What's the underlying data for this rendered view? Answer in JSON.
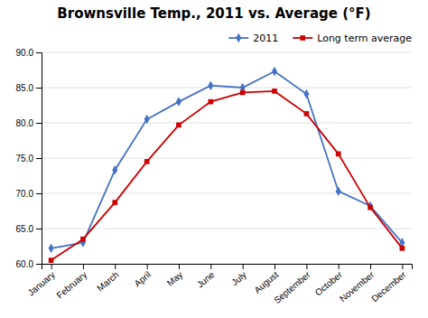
{
  "chart_data": {
    "type": "line",
    "title": "Brownsville Temp., 2011 vs. Average (°F)",
    "categories": [
      "January",
      "February",
      "March",
      "April",
      "May",
      "June",
      "July",
      "August",
      "September",
      "October",
      "November",
      "December"
    ],
    "series": [
      {
        "name": "2011",
        "color": "#4472C4",
        "marker": "diamond",
        "values": [
          62.2,
          63.0,
          73.3,
          80.5,
          83.0,
          85.3,
          85.0,
          87.3,
          84.1,
          70.3,
          68.2,
          63.0
        ]
      },
      {
        "name": "Long term average",
        "color": "#CC0000",
        "marker": "square",
        "values": [
          60.5,
          63.5,
          68.7,
          74.5,
          79.7,
          83.0,
          84.3,
          84.5,
          81.3,
          75.6,
          68.0,
          62.2
        ]
      }
    ],
    "ylim": [
      60.0,
      90.0
    ],
    "yticks": [
      {
        "value": 60,
        "label": "60.0"
      },
      {
        "value": 65,
        "label": "65.0"
      },
      {
        "value": 70,
        "label": "70.0"
      },
      {
        "value": 75,
        "label": "75.0"
      },
      {
        "value": 80,
        "label": "80.0"
      },
      {
        "value": 85,
        "label": "85.0"
      },
      {
        "value": 90,
        "label": "90.0"
      }
    ],
    "grid": true,
    "legend": "upper right"
  }
}
